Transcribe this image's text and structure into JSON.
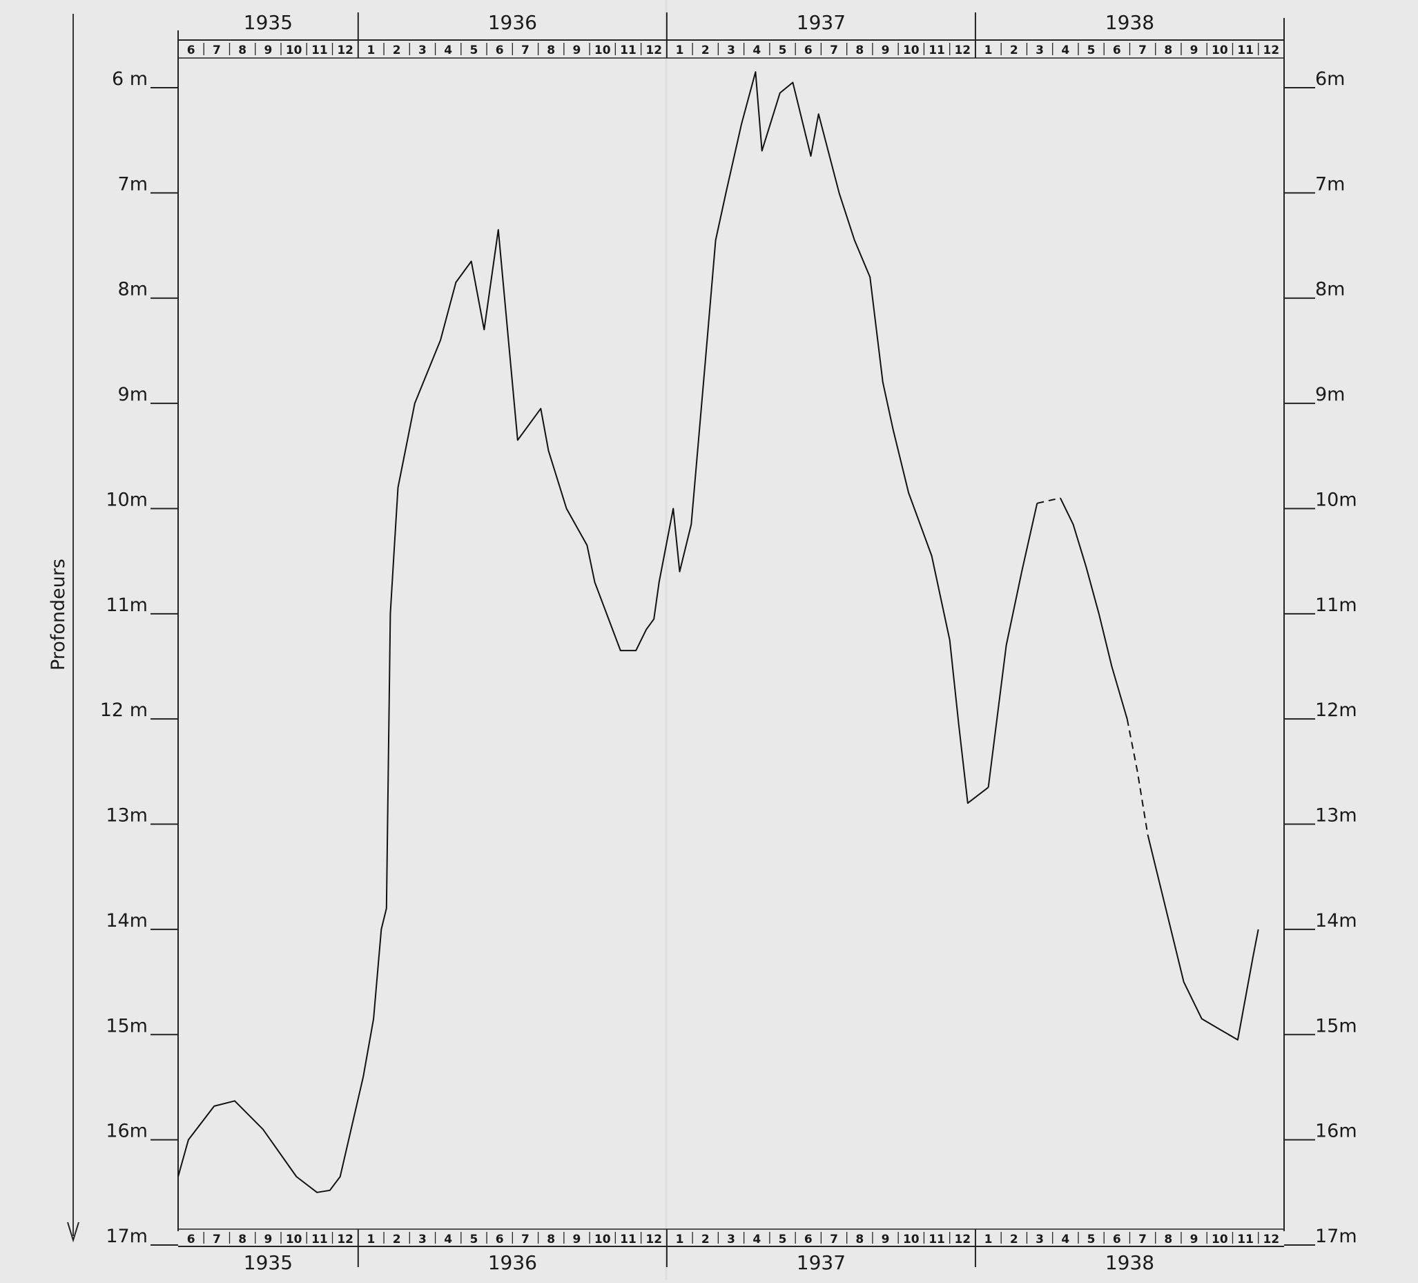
{
  "chart_data": {
    "type": "line",
    "ylabel": "Profondeurs",
    "y_axis_direction": "down",
    "ylim": [
      6,
      17
    ],
    "y_ticks": [
      {
        "value": 6,
        "left_label": "6 m",
        "right_label": "6m"
      },
      {
        "value": 7,
        "left_label": "7m",
        "right_label": "7m"
      },
      {
        "value": 8,
        "left_label": "8m",
        "right_label": "8m"
      },
      {
        "value": 9,
        "left_label": "9m",
        "right_label": "9m"
      },
      {
        "value": 10,
        "left_label": "10m",
        "right_label": "10m"
      },
      {
        "value": 11,
        "left_label": "11m",
        "right_label": "11m"
      },
      {
        "value": 12,
        "left_label": "12 m",
        "right_label": "12m"
      },
      {
        "value": 13,
        "left_label": "13m",
        "right_label": "13m"
      },
      {
        "value": 14,
        "left_label": "14m",
        "right_label": "14m"
      },
      {
        "value": 15,
        "left_label": "15m",
        "right_label": "15m"
      },
      {
        "value": 16,
        "left_label": "16m",
        "right_label": "16m"
      },
      {
        "value": 17,
        "left_label": "17m",
        "right_label": "17m"
      }
    ],
    "x_axis_unit": "months since start of June 1935",
    "xlim": [
      0,
      43
    ],
    "years": [
      {
        "label": "1935",
        "start": 0,
        "end": 7
      },
      {
        "label": "1936",
        "start": 7,
        "end": 19
      },
      {
        "label": "1937",
        "start": 19,
        "end": 31
      },
      {
        "label": "1938",
        "start": 31,
        "end": 43
      }
    ],
    "months": [
      "6",
      "7",
      "8",
      "9",
      "10",
      "11",
      "12",
      "1",
      "2",
      "3",
      "4",
      "5",
      "6",
      "7",
      "8",
      "9",
      "10",
      "11",
      "12",
      "1",
      "2",
      "3",
      "4",
      "5",
      "6",
      "7",
      "8",
      "9",
      "10",
      "11",
      "12",
      "1",
      "2",
      "3",
      "4",
      "5",
      "6",
      "7",
      "8",
      "9",
      "10",
      "11",
      "12"
    ],
    "series": [
      {
        "segments": [
          {
            "style": "solid",
            "points": [
              [
                0.0,
                16.35
              ],
              [
                0.4,
                16.0
              ],
              [
                1.4,
                15.68
              ],
              [
                2.2,
                15.63
              ],
              [
                3.3,
                15.9
              ],
              [
                4.6,
                16.35
              ],
              [
                5.4,
                16.5
              ],
              [
                5.9,
                16.48
              ],
              [
                6.3,
                16.35
              ],
              [
                7.2,
                15.4
              ],
              [
                7.6,
                14.85
              ],
              [
                7.9,
                14.0
              ],
              [
                8.1,
                13.8
              ],
              [
                8.25,
                11.0
              ],
              [
                8.4,
                10.4
              ],
              [
                8.55,
                9.8
              ],
              [
                9.2,
                9.0
              ],
              [
                10.2,
                8.4
              ],
              [
                10.8,
                7.85
              ],
              [
                11.4,
                7.65
              ],
              [
                11.9,
                8.3
              ],
              [
                12.45,
                7.35
              ],
              [
                13.2,
                9.35
              ],
              [
                14.1,
                9.05
              ],
              [
                14.4,
                9.45
              ],
              [
                15.1,
                10.0
              ],
              [
                15.9,
                10.35
              ],
              [
                16.2,
                10.7
              ],
              [
                17.2,
                11.35
              ],
              [
                17.8,
                11.35
              ],
              [
                18.2,
                11.15
              ],
              [
                18.5,
                11.05
              ],
              [
                18.7,
                10.7
              ],
              [
                19.25,
                10.0
              ],
              [
                19.5,
                10.6
              ],
              [
                19.95,
                10.15
              ],
              [
                20.5,
                8.6
              ],
              [
                20.9,
                7.45
              ],
              [
                21.3,
                7.0
              ],
              [
                21.9,
                6.35
              ],
              [
                22.45,
                5.85
              ],
              [
                22.7,
                6.6
              ],
              [
                23.4,
                6.05
              ],
              [
                23.9,
                5.95
              ],
              [
                24.6,
                6.65
              ],
              [
                24.9,
                6.25
              ],
              [
                25.7,
                7.0
              ],
              [
                26.3,
                7.45
              ],
              [
                26.9,
                7.8
              ],
              [
                27.4,
                8.8
              ],
              [
                27.8,
                9.25
              ],
              [
                28.4,
                9.85
              ],
              [
                29.3,
                10.45
              ],
              [
                30.0,
                11.25
              ],
              [
                30.35,
                12.05
              ],
              [
                30.7,
                12.8
              ],
              [
                31.5,
                12.65
              ]
            ]
          },
          {
            "style": "solid",
            "points": [
              [
                31.5,
                12.65
              ],
              [
                32.2,
                11.3
              ],
              [
                32.8,
                10.6
              ],
              [
                33.4,
                9.95
              ]
            ]
          },
          {
            "style": "dashed",
            "points": [
              [
                33.4,
                9.95
              ],
              [
                34.3,
                9.9
              ]
            ]
          },
          {
            "style": "solid",
            "points": [
              [
                34.3,
                9.9
              ],
              [
                34.8,
                10.15
              ],
              [
                35.3,
                10.55
              ],
              [
                35.8,
                11.0
              ],
              [
                36.3,
                11.5
              ],
              [
                36.9,
                12.0
              ]
            ]
          },
          {
            "style": "dashed",
            "points": [
              [
                36.9,
                12.0
              ],
              [
                37.3,
                12.5
              ],
              [
                37.7,
                13.1
              ]
            ]
          },
          {
            "style": "solid",
            "points": [
              [
                37.7,
                13.1
              ],
              [
                38.4,
                13.8
              ],
              [
                39.1,
                14.5
              ],
              [
                39.8,
                14.85
              ],
              [
                40.5,
                14.95
              ],
              [
                41.2,
                15.05
              ],
              [
                41.8,
                14.25
              ],
              [
                42.0,
                14.0
              ]
            ]
          }
        ]
      }
    ]
  }
}
